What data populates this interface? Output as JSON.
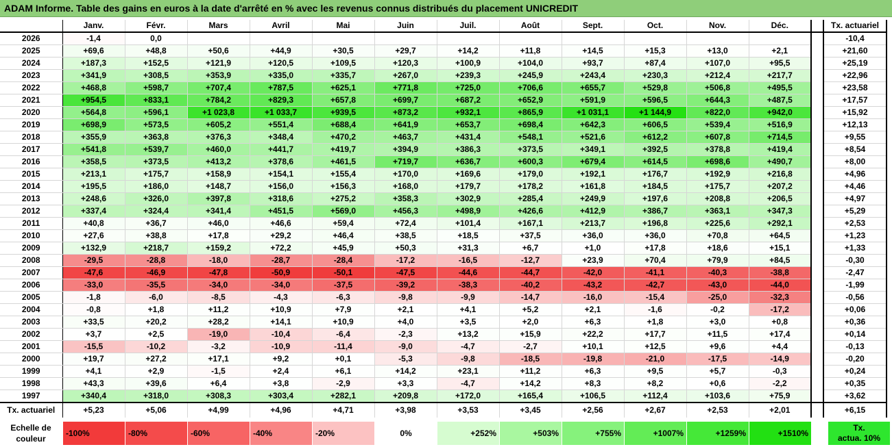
{
  "title": "ADAM Informe. Table des gains en euros à la date d'arrêté en % avec les revenus connus distribués du placement UNICREDIT",
  "months": [
    "Janv.",
    "Févr.",
    "Mars",
    "Avril",
    "Mai",
    "Juin",
    "Juil.",
    "Août",
    "Sept.",
    "Oct.",
    "Nov.",
    "Déc."
  ],
  "tx_header": "Tx. actuariel",
  "rows": [
    {
      "year": "2026",
      "cells": [
        "-1,4",
        "0,0",
        "",
        "",
        "",
        "",
        "",
        "",
        "",
        "",
        "",
        ""
      ],
      "tx": "-10,4"
    },
    {
      "year": "2025",
      "cells": [
        "+69,6",
        "+48,8",
        "+50,6",
        "+44,9",
        "+30,5",
        "+29,7",
        "+14,2",
        "+11,8",
        "+14,5",
        "+15,3",
        "+13,0",
        "+2,1"
      ],
      "tx": "+21,60"
    },
    {
      "year": "2024",
      "cells": [
        "+187,3",
        "+152,5",
        "+121,9",
        "+120,5",
        "+109,5",
        "+120,3",
        "+100,9",
        "+104,0",
        "+93,7",
        "+87,4",
        "+107,0",
        "+95,5"
      ],
      "tx": "+25,19"
    },
    {
      "year": "2023",
      "cells": [
        "+341,9",
        "+308,5",
        "+353,9",
        "+335,0",
        "+335,7",
        "+267,0",
        "+239,3",
        "+245,9",
        "+243,4",
        "+230,3",
        "+212,4",
        "+217,7"
      ],
      "tx": "+22,96"
    },
    {
      "year": "2022",
      "cells": [
        "+468,8",
        "+598,7",
        "+707,4",
        "+787,5",
        "+625,1",
        "+771,8",
        "+725,0",
        "+706,6",
        "+655,7",
        "+529,8",
        "+506,8",
        "+495,5"
      ],
      "tx": "+23,58"
    },
    {
      "year": "2021",
      "cells": [
        "+954,5",
        "+833,1",
        "+784,2",
        "+829,3",
        "+657,8",
        "+699,7",
        "+687,2",
        "+652,9",
        "+591,9",
        "+596,5",
        "+644,3",
        "+487,5"
      ],
      "tx": "+17,57"
    },
    {
      "year": "2020",
      "cells": [
        "+564,8",
        "+596,1",
        "+1 023,8",
        "+1 033,7",
        "+939,5",
        "+873,2",
        "+932,1",
        "+865,9",
        "+1 031,1",
        "+1 144,9",
        "+822,0",
        "+942,0"
      ],
      "tx": "+15,92"
    },
    {
      "year": "2019",
      "cells": [
        "+698,9",
        "+573,5",
        "+605,2",
        "+551,4",
        "+688,4",
        "+641,9",
        "+653,7",
        "+698,4",
        "+642,3",
        "+606,5",
        "+539,4",
        "+516,9"
      ],
      "tx": "+12,13"
    },
    {
      "year": "2018",
      "cells": [
        "+355,9",
        "+363,8",
        "+376,3",
        "+348,4",
        "+470,2",
        "+463,7",
        "+431,4",
        "+548,1",
        "+521,6",
        "+612,2",
        "+607,8",
        "+714,5"
      ],
      "tx": "+9,55"
    },
    {
      "year": "2017",
      "cells": [
        "+541,8",
        "+539,7",
        "+460,0",
        "+441,7",
        "+419,7",
        "+394,9",
        "+386,3",
        "+373,5",
        "+349,1",
        "+392,5",
        "+378,8",
        "+419,4"
      ],
      "tx": "+8,54"
    },
    {
      "year": "2016",
      "cells": [
        "+358,5",
        "+373,5",
        "+413,2",
        "+378,6",
        "+461,5",
        "+719,7",
        "+636,7",
        "+600,3",
        "+679,4",
        "+614,5",
        "+698,6",
        "+490,7"
      ],
      "tx": "+8,00"
    },
    {
      "year": "2015",
      "cells": [
        "+213,1",
        "+175,7",
        "+158,9",
        "+154,1",
        "+155,4",
        "+170,0",
        "+169,6",
        "+179,0",
        "+192,1",
        "+176,7",
        "+192,9",
        "+216,8"
      ],
      "tx": "+4,96"
    },
    {
      "year": "2014",
      "cells": [
        "+195,5",
        "+186,0",
        "+148,7",
        "+156,0",
        "+156,3",
        "+168,0",
        "+179,7",
        "+178,2",
        "+161,8",
        "+184,5",
        "+175,7",
        "+207,2"
      ],
      "tx": "+4,46"
    },
    {
      "year": "2013",
      "cells": [
        "+248,6",
        "+326,0",
        "+397,8",
        "+318,6",
        "+275,2",
        "+358,3",
        "+302,9",
        "+285,4",
        "+249,9",
        "+197,6",
        "+208,8",
        "+206,5"
      ],
      "tx": "+4,97"
    },
    {
      "year": "2012",
      "cells": [
        "+337,4",
        "+324,4",
        "+341,4",
        "+451,5",
        "+569,0",
        "+456,3",
        "+498,9",
        "+426,6",
        "+412,9",
        "+386,7",
        "+363,1",
        "+347,3"
      ],
      "tx": "+5,29"
    },
    {
      "year": "2011",
      "cells": [
        "+40,8",
        "+36,7",
        "+46,0",
        "+46,6",
        "+59,4",
        "+72,4",
        "+101,4",
        "+167,1",
        "+213,7",
        "+196,8",
        "+225,6",
        "+292,1"
      ],
      "tx": "+2,53"
    },
    {
      "year": "2010",
      "cells": [
        "+27,6",
        "+38,8",
        "+17,8",
        "+29,2",
        "+46,4",
        "+38,5",
        "+18,5",
        "+37,5",
        "+36,0",
        "+36,0",
        "+70,8",
        "+64,5"
      ],
      "tx": "+1,23"
    },
    {
      "year": "2009",
      "cells": [
        "+132,9",
        "+218,7",
        "+159,2",
        "+72,2",
        "+45,9",
        "+50,3",
        "+31,3",
        "+6,7",
        "+1,0",
        "+17,8",
        "+18,6",
        "+15,1"
      ],
      "tx": "+1,33"
    },
    {
      "year": "2008",
      "cells": [
        "-29,5",
        "-28,8",
        "-18,0",
        "-28,7",
        "-28,4",
        "-17,2",
        "-16,5",
        "-12,7",
        "+23,9",
        "+70,4",
        "+79,9",
        "+84,5"
      ],
      "tx": "-0,30"
    },
    {
      "year": "2007",
      "cells": [
        "-47,6",
        "-46,9",
        "-47,8",
        "-50,9",
        "-50,1",
        "-47,5",
        "-44,6",
        "-44,7",
        "-42,0",
        "-41,1",
        "-40,3",
        "-38,8"
      ],
      "tx": "-2,47"
    },
    {
      "year": "2006",
      "cells": [
        "-33,0",
        "-35,5",
        "-34,0",
        "-34,0",
        "-37,5",
        "-39,2",
        "-38,3",
        "-40,2",
        "-43,2",
        "-42,7",
        "-43,0",
        "-44,0"
      ],
      "tx": "-1,99"
    },
    {
      "year": "2005",
      "cells": [
        "-1,8",
        "-6,0",
        "-8,5",
        "-4,3",
        "-6,3",
        "-9,8",
        "-9,9",
        "-14,7",
        "-16,0",
        "-15,4",
        "-25,0",
        "-32,3"
      ],
      "tx": "-0,56"
    },
    {
      "year": "2004",
      "cells": [
        "-0,8",
        "+1,8",
        "+11,2",
        "+10,9",
        "+7,9",
        "+2,1",
        "+4,1",
        "+5,2",
        "+2,1",
        "-1,6",
        "-0,2",
        "-17,2"
      ],
      "tx": "+0,06"
    },
    {
      "year": "2003",
      "cells": [
        "+33,5",
        "+20,2",
        "+28,2",
        "+14,1",
        "+10,9",
        "+4,0",
        "+3,5",
        "+2,0",
        "+6,3",
        "+1,8",
        "+3,0",
        "+0,8"
      ],
      "tx": "+0,36"
    },
    {
      "year": "2002",
      "cells": [
        "+3,7",
        "+2,5",
        "-19,0",
        "-10,4",
        "-6,4",
        "-2,3",
        "+13,2",
        "+15,9",
        "+22,2",
        "+17,7",
        "+11,5",
        "+17,4"
      ],
      "tx": "+0,14"
    },
    {
      "year": "2001",
      "cells": [
        "-15,5",
        "-10,2",
        "-3,2",
        "-10,9",
        "-11,4",
        "-9,0",
        "-4,7",
        "-2,7",
        "+10,1",
        "+12,5",
        "+9,6",
        "+4,4"
      ],
      "tx": "-0,13"
    },
    {
      "year": "2000",
      "cells": [
        "+19,7",
        "+27,2",
        "+17,1",
        "+9,2",
        "+0,1",
        "-5,3",
        "-9,8",
        "-18,5",
        "-19,8",
        "-21,0",
        "-17,5",
        "-14,9"
      ],
      "tx": "-0,20"
    },
    {
      "year": "1999",
      "cells": [
        "+4,1",
        "+2,9",
        "-1,5",
        "+2,4",
        "+6,1",
        "+14,2",
        "+23,1",
        "+11,2",
        "+6,3",
        "+9,5",
        "+5,7",
        "-0,3"
      ],
      "tx": "+0,24"
    },
    {
      "year": "1998",
      "cells": [
        "+43,3",
        "+39,6",
        "+6,4",
        "+3,8",
        "-2,9",
        "+3,3",
        "-4,7",
        "+14,2",
        "+8,3",
        "+8,2",
        "+0,6",
        "-2,2"
      ],
      "tx": "+0,35"
    },
    {
      "year": "1997",
      "cells": [
        "+340,4",
        "+318,0",
        "+308,3",
        "+303,4",
        "+282,1",
        "+209,8",
        "+172,0",
        "+165,4",
        "+106,5",
        "+112,4",
        "+103,6",
        "+75,9"
      ],
      "tx": "+3,62"
    }
  ],
  "footer": {
    "label": "Tx. actuariel",
    "cells": [
      "+5,23",
      "+5,06",
      "+4,99",
      "+4,96",
      "+4,71",
      "+3,98",
      "+3,53",
      "+3,45",
      "+2,56",
      "+2,67",
      "+2,53",
      "+2,01"
    ],
    "tx": "+6,15"
  },
  "legend": {
    "label_line1": "Echelle de",
    "label_line2": "couleur",
    "cells": [
      {
        "text": "-100%",
        "color": "#f23a3a",
        "align": "left"
      },
      {
        "text": "-80%",
        "color": "#f44b4b",
        "align": "left"
      },
      {
        "text": "-60%",
        "color": "#f76464",
        "align": "left"
      },
      {
        "text": "-40%",
        "color": "#f98585",
        "align": "left"
      },
      {
        "text": "-20%",
        "color": "#fcc2c2",
        "align": "left"
      },
      {
        "text": "0%",
        "color": "#ffffff",
        "align": "center"
      },
      {
        "text": "+252%",
        "color": "#d6fcd0",
        "align": "right"
      },
      {
        "text": "+503%",
        "color": "#a9f7a0",
        "align": "right"
      },
      {
        "text": "+755%",
        "color": "#86f27c",
        "align": "right"
      },
      {
        "text": "+1007%",
        "color": "#63ec56",
        "align": "right"
      },
      {
        "text": "+1259%",
        "color": "#45e838",
        "align": "right"
      },
      {
        "text": "+1510%",
        "color": "#22e012",
        "align": "right"
      }
    ],
    "tx_line1": "Tx.",
    "tx_line2": "actua. 10%"
  },
  "colors": {
    "title_bg": "#8fce7a",
    "tx_legend": "#2ee62e"
  }
}
